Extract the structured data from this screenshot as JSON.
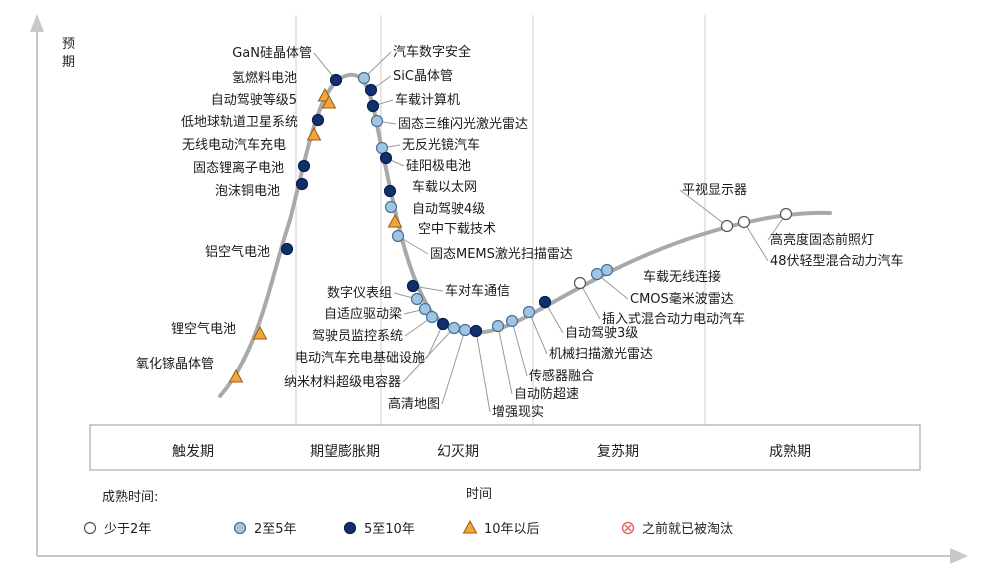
{
  "axes": {
    "y_label": "预期",
    "x_label": "时间"
  },
  "phases": [
    "触发期",
    "期望膨胀期",
    "幻灭期",
    "复苏期",
    "成熟期"
  ],
  "legend": {
    "title": "成熟时间:",
    "items": [
      {
        "label": "少于2年",
        "kind": "lt2"
      },
      {
        "label": "2至5年",
        "kind": "y2to5"
      },
      {
        "label": "5至10年",
        "kind": "y5to10"
      },
      {
        "label": "10年以后",
        "kind": "gt10"
      },
      {
        "label": "之前就已被淘汰",
        "kind": "obsolete"
      }
    ]
  },
  "colors": {
    "curve": "#a9a9a9",
    "lt2_fill": "#ffffff",
    "y2to5_fill": "#9fc5e3",
    "y5to10_fill": "#0f2f6e",
    "gt10_fill": "#f0a540",
    "obsolete": "#e06a6a",
    "axis": "#c8c8c8"
  },
  "technologies": [
    {
      "name": "氧化镓晶体管",
      "kind": "gt10"
    },
    {
      "name": "锂空气电池",
      "kind": "gt10"
    },
    {
      "name": "铝空气电池",
      "kind": "y5to10"
    },
    {
      "name": "泡沫铜电池",
      "kind": "y5to10"
    },
    {
      "name": "固态锂离子电池",
      "kind": "y5to10"
    },
    {
      "name": "无线电动汽车充电",
      "kind": "gt10"
    },
    {
      "name": "低地球轨道卫星系统",
      "kind": "y5to10"
    },
    {
      "name": "自动驾驶等级5",
      "kind": "gt10"
    },
    {
      "name": "氢燃料电池",
      "kind": "gt10"
    },
    {
      "name": "GaN硅晶体管",
      "kind": "y5to10"
    },
    {
      "name": "汽车数字安全",
      "kind": "y2to5"
    },
    {
      "name": "SiC晶体管",
      "kind": "y5to10"
    },
    {
      "name": "车载计算机",
      "kind": "y5to10"
    },
    {
      "name": "固态三维闪光激光雷达",
      "kind": "y2to5"
    },
    {
      "name": "无反光镜汽车",
      "kind": "y2to5"
    },
    {
      "name": "硅阳极电池",
      "kind": "y5to10"
    },
    {
      "name": "车载以太网",
      "kind": "y5to10"
    },
    {
      "name": "自动驾驶4级",
      "kind": "y2to5"
    },
    {
      "name": "空中下载技术",
      "kind": "gt10"
    },
    {
      "name": "固态MEMS激光扫描雷达",
      "kind": "y2to5"
    },
    {
      "name": "车对车通信",
      "kind": "y5to10"
    },
    {
      "name": "数字仪表组",
      "kind": "y2to5"
    },
    {
      "name": "自适应驱动梁",
      "kind": "y2to5"
    },
    {
      "name": "驾驶员监控系统",
      "kind": "y2to5"
    },
    {
      "name": "电动汽车充电基础设施",
      "kind": "y5to10"
    },
    {
      "name": "纳米材料超级电容器",
      "kind": "y2to5"
    },
    {
      "name": "高清地图",
      "kind": "y2to5"
    },
    {
      "name": "增强现实",
      "kind": "y5to10"
    },
    {
      "name": "自动防超速",
      "kind": "y2to5"
    },
    {
      "name": "传感器融合",
      "kind": "y2to5"
    },
    {
      "name": "机械扫描激光雷达",
      "kind": "y2to5"
    },
    {
      "name": "自动驾驶3级",
      "kind": "y5to10"
    },
    {
      "name": "插入式混合动力电动汽车",
      "kind": "lt2"
    },
    {
      "name": "CMOS毫米波雷达",
      "kind": "y2to5"
    },
    {
      "name": "车载无线连接",
      "kind": "y2to5"
    },
    {
      "name": "平视显示器",
      "kind": "lt2"
    },
    {
      "name": "48伏轻型混合动力汽车",
      "kind": "lt2"
    },
    {
      "name": "高亮度固态前照灯",
      "kind": "lt2"
    }
  ]
}
